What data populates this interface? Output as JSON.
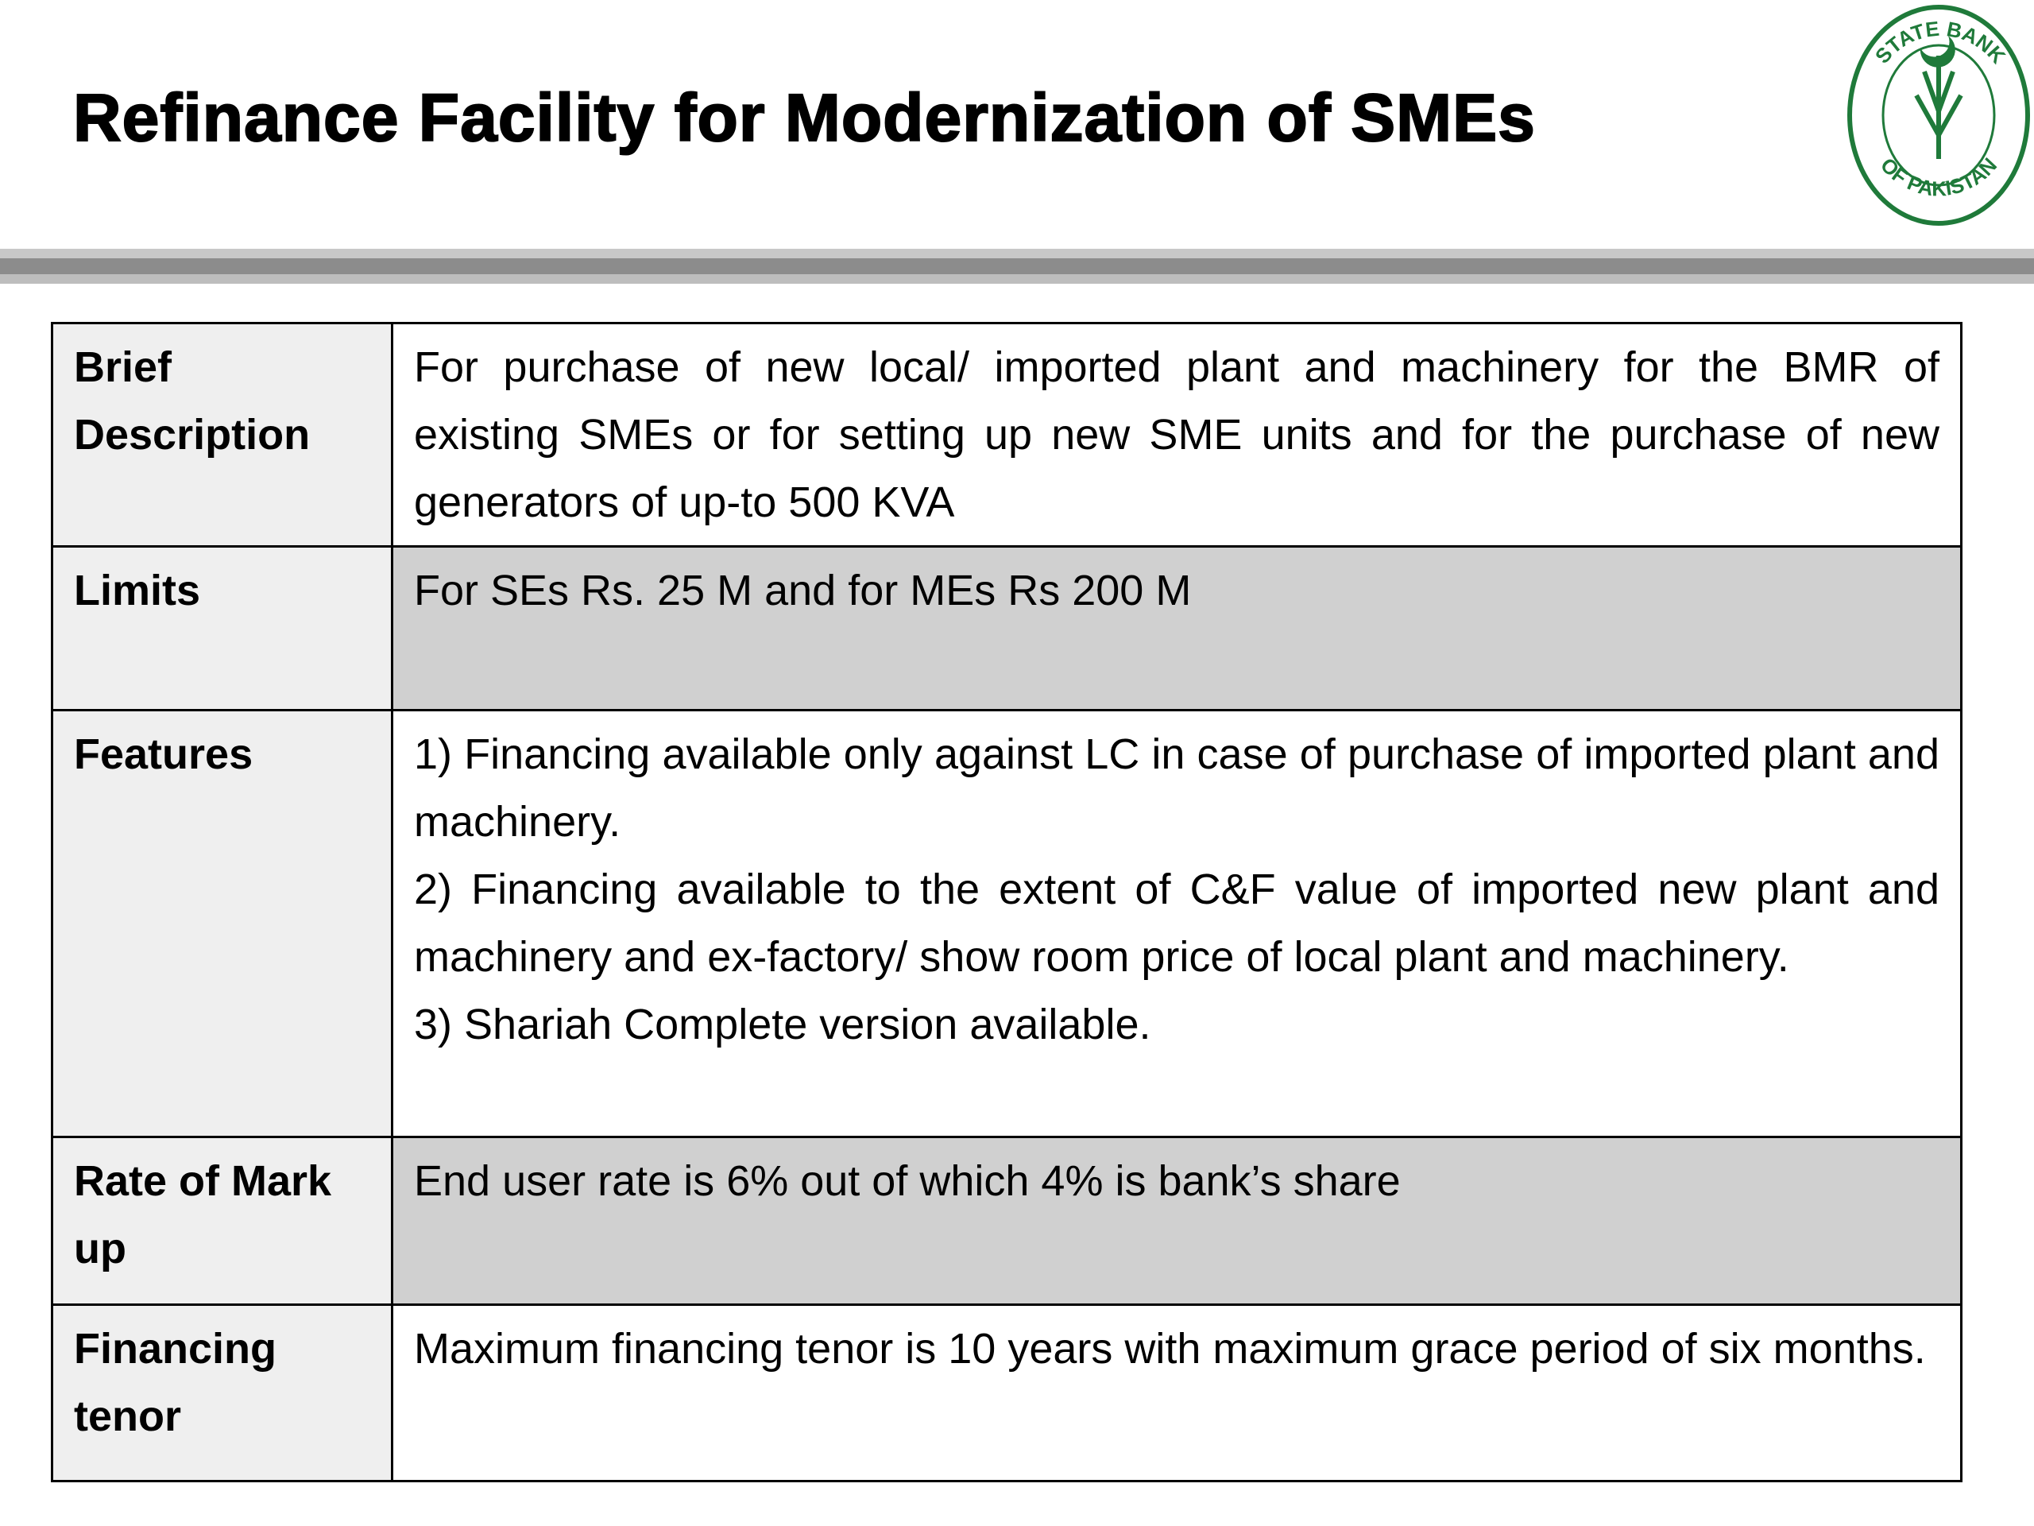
{
  "header": {
    "title": "Refinance Facility for Modernization of SMEs"
  },
  "logo": {
    "top": "STATE BANK",
    "bottom": "OF PAKISTAN"
  },
  "table": {
    "rows": [
      {
        "label": "Brief Description",
        "content": [
          "For purchase of new local/ imported plant and machinery for the BMR of existing SMEs or for setting up new SME units and for the purchase of new generators of up-to 500 KVA"
        ]
      },
      {
        "label": "Limits",
        "content": [
          "For SEs Rs. 25 M and for MEs Rs 200 M"
        ]
      },
      {
        "label": "Features",
        "content": [
          "1) Financing available only against LC in case of purchase of imported plant and machinery.",
          "2) Financing available to the extent of C&F value of imported new plant and machinery and ex-factory/ show room price of local plant and machinery.",
          "3) Shariah Complete version available."
        ]
      },
      {
        "label": "Rate of Mark up",
        "content": [
          "End user rate is 6% out of which 4% is bank’s share"
        ]
      },
      {
        "label": "Financing tenor",
        "content": [
          "Maximum financing tenor is 10 years with maximum grace period of six months."
        ]
      }
    ]
  }
}
